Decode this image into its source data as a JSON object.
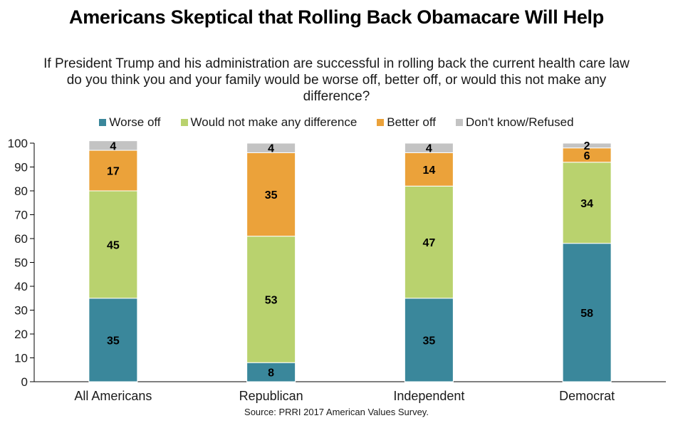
{
  "chart_data": {
    "type": "bar",
    "stacked": true,
    "title": "Americans Skeptical that Rolling Back Obamacare Will Help",
    "subtitle": "If President Trump and his administration are successful in rolling back the current health care law do you think you and your family would be worse off, better off, or would this not make any difference?",
    "categories": [
      "All Americans",
      "Republican",
      "Independent",
      "Democrat"
    ],
    "series": [
      {
        "name": "Worse off",
        "color": "#3a879b",
        "values": [
          35,
          8,
          35,
          58
        ]
      },
      {
        "name": "Would not make any difference",
        "color": "#b9d26e",
        "values": [
          45,
          53,
          47,
          34
        ]
      },
      {
        "name": "Better off",
        "color": "#eba23a",
        "values": [
          17,
          35,
          14,
          6
        ]
      },
      {
        "name": "Don't know/Refused",
        "color": "#c3c3c3",
        "values": [
          4,
          4,
          4,
          2
        ]
      }
    ],
    "ylim": [
      0,
      100
    ],
    "yticks": [
      0,
      10,
      20,
      30,
      40,
      50,
      60,
      70,
      80,
      90,
      100
    ],
    "xlabel": "",
    "ylabel": "",
    "legend_position": "top",
    "source": "Source: PRRI 2017 American Values Survey."
  }
}
